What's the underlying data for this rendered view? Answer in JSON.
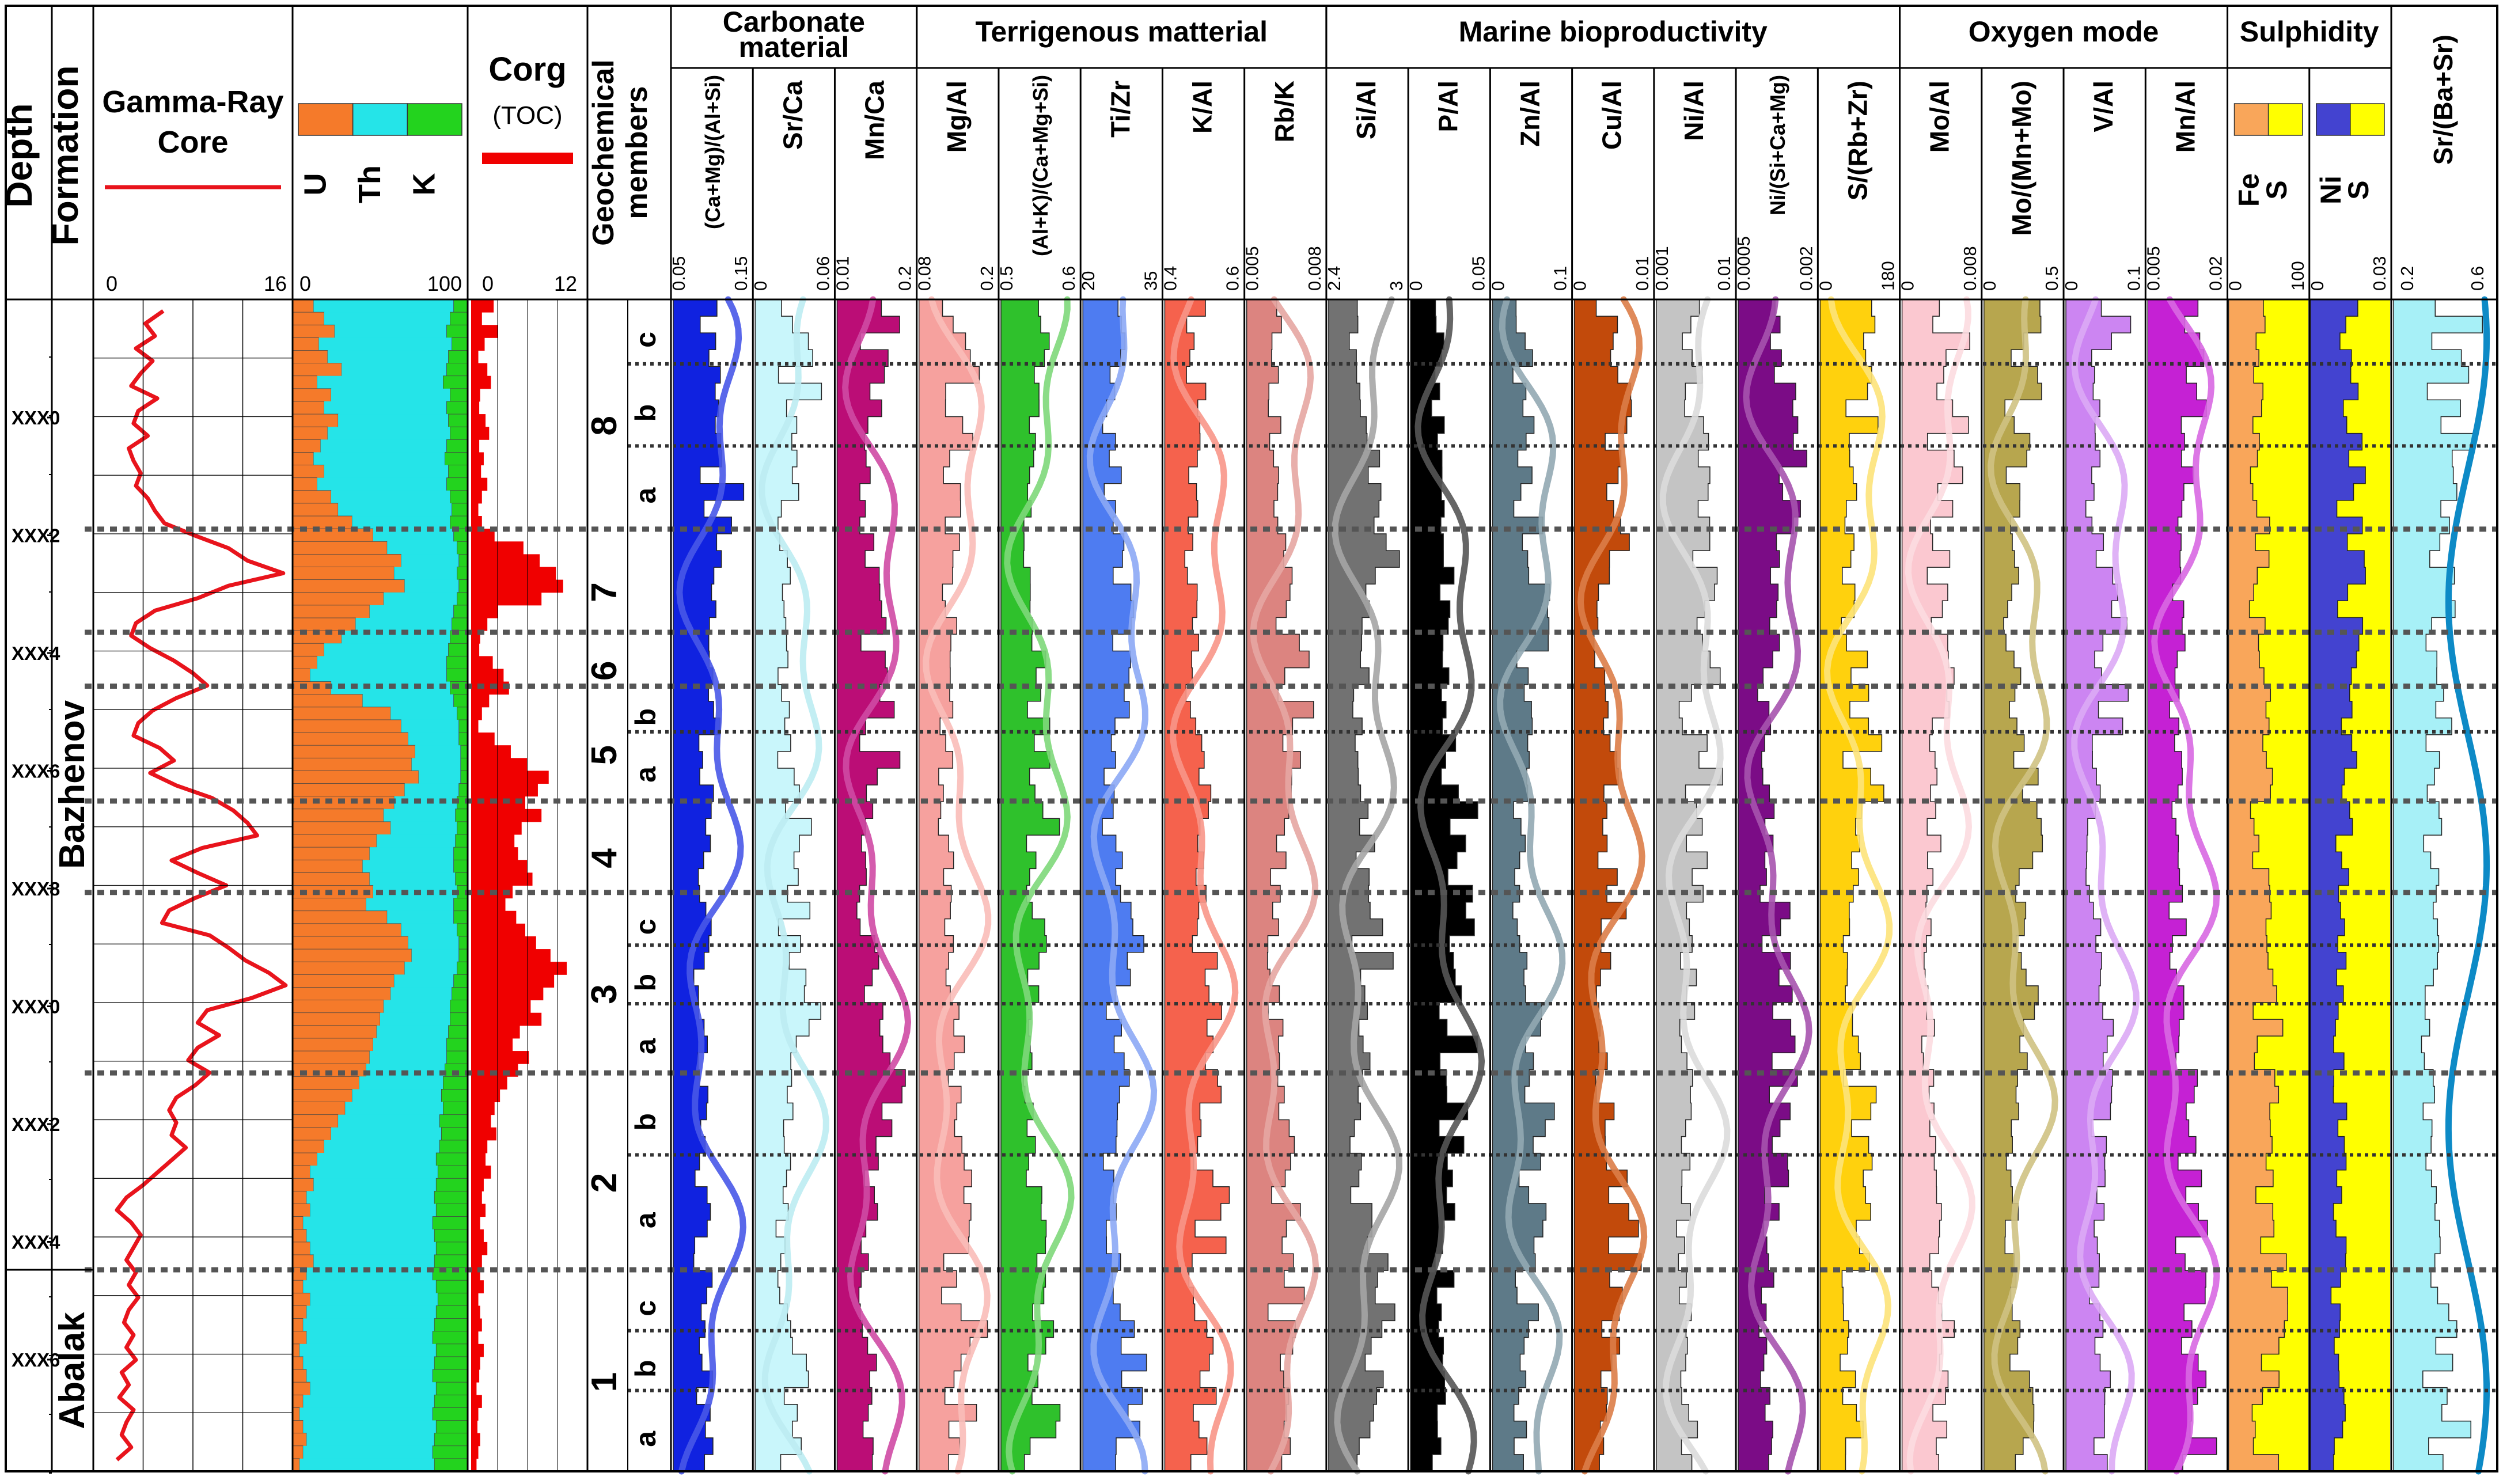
{
  "chart_data": {
    "type": "well-log",
    "depth_header": "Depth",
    "formation_header": "Formation",
    "depth_labels": [
      "XXX0",
      "XXX2",
      "XXX4",
      "XXX6",
      "XXX8",
      "XXX0",
      "XXX2",
      "XXX4",
      "XXX6"
    ],
    "formations": [
      {
        "name": "Bazhenov",
        "top": 0.0,
        "base": 0.828
      },
      {
        "name": "Abalak",
        "top": 0.828,
        "base": 1.0
      }
    ],
    "gamma": {
      "title_lines": [
        "Gamma-Ray",
        "Core"
      ],
      "min_label": "0",
      "max_label": "16",
      "range": [
        0,
        16
      ],
      "color": "#e8141c",
      "values": [
        5.5,
        4.0,
        4.8,
        3.2,
        4.6,
        3.6,
        2.8,
        5.0,
        3.4,
        3.0,
        4.2,
        2.6,
        3.0,
        3.6,
        3.2,
        4.2,
        4.8,
        5.6,
        8.2,
        11.0,
        12.6,
        15.6,
        11.0,
        8.4,
        4.8,
        3.2,
        2.8,
        4.4,
        6.4,
        8.0,
        9.2,
        6.6,
        4.6,
        3.4,
        3.0,
        5.2,
        6.4,
        4.4,
        6.6,
        9.6,
        11.4,
        12.6,
        13.4,
        8.8,
        6.2,
        8.4,
        10.8,
        8.2,
        6.0,
        5.4,
        9.4,
        11.0,
        12.4,
        14.4,
        15.8,
        13.0,
        9.2,
        8.4,
        10.2,
        8.4,
        7.6,
        9.4,
        8.2,
        6.6,
        6.0,
        6.6,
        6.2,
        7.4,
        6.2,
        5.0,
        3.8,
        2.4,
        1.6,
        2.8,
        3.6,
        3.0,
        2.4,
        3.2,
        2.6,
        3.4,
        2.6,
        2.2,
        3.0,
        2.4,
        3.2,
        2.0,
        2.6,
        1.8,
        3.0,
        2.4,
        2.0,
        2.8,
        1.6
      ]
    },
    "spectral": {
      "labels": [
        "U",
        "Th",
        "K"
      ],
      "colors": [
        "#f57a2a",
        "#25e4e8",
        "#23d31e"
      ],
      "min_label": "0",
      "max_label": "100",
      "u_values": [
        12,
        18,
        24,
        15,
        20,
        28,
        14,
        22,
        18,
        26,
        20,
        16,
        12,
        18,
        14,
        22,
        26,
        34,
        46,
        54,
        62,
        58,
        64,
        52,
        44,
        36,
        28,
        18,
        14,
        10,
        22,
        40,
        56,
        62,
        66,
        70,
        68,
        72,
        64,
        58,
        52,
        56,
        48,
        44,
        40,
        44,
        46,
        42,
        54,
        62,
        66,
        68,
        64,
        58,
        56,
        52,
        50,
        48,
        46,
        44,
        42,
        38,
        34,
        30,
        26,
        22,
        18,
        14,
        10,
        12,
        8,
        10,
        6,
        8,
        10,
        12,
        8,
        6,
        10,
        8,
        6,
        8,
        4,
        6,
        8,
        10,
        6,
        4,
        6,
        8,
        6,
        4
      ],
      "k_values": [
        8,
        10,
        12,
        9,
        11,
        12,
        14,
        10,
        12,
        11,
        10,
        12,
        13,
        11,
        12,
        10,
        9,
        10,
        8,
        6,
        5,
        6,
        5,
        6,
        8,
        9,
        10,
        11,
        12,
        12,
        10,
        8,
        6,
        5,
        5,
        4,
        4,
        4,
        5,
        6,
        7,
        6,
        7,
        8,
        8,
        7,
        6,
        8,
        8,
        6,
        5,
        5,
        6,
        8,
        9,
        10,
        10,
        11,
        12,
        12,
        13,
        14,
        15,
        14,
        16,
        15,
        16,
        18,
        17,
        18,
        19,
        18,
        20,
        19,
        18,
        19,
        20,
        18,
        17,
        18,
        19,
        20,
        18,
        19,
        20,
        18,
        19,
        20,
        18,
        19,
        20,
        19
      ]
    },
    "corg": {
      "title": "Corg",
      "subtitle": "(TOC)",
      "color": "#f00000",
      "min_label": "0",
      "max_label": "12",
      "values": [
        2.5,
        1.2,
        3.0,
        1.5,
        0.8,
        1.8,
        2.2,
        1.0,
        0.9,
        1.6,
        2.0,
        0.9,
        1.4,
        1.1,
        1.8,
        1.2,
        0.8,
        1.2,
        2.6,
        5.8,
        7.6,
        9.4,
        10.2,
        7.8,
        3.0,
        1.8,
        1.0,
        0.9,
        2.4,
        3.6,
        4.2,
        2.0,
        1.2,
        0.8,
        2.6,
        4.4,
        6.2,
        8.6,
        7.4,
        6.0,
        7.8,
        5.6,
        4.8,
        5.2,
        6.2,
        6.8,
        4.6,
        3.8,
        5.0,
        6.0,
        7.2,
        8.8,
        10.6,
        9.2,
        8.0,
        6.6,
        7.8,
        5.4,
        4.6,
        6.4,
        5.2,
        4.0,
        3.2,
        2.6,
        2.2,
        2.8,
        1.8,
        1.6,
        2.2,
        1.4,
        1.2,
        1.6,
        1.0,
        1.4,
        1.8,
        1.2,
        1.0,
        1.4,
        0.8,
        1.0,
        1.2,
        0.8,
        1.4,
        1.0,
        0.9,
        0.6,
        1.2,
        0.8,
        0.7,
        1.0,
        0.8,
        0.6
      ]
    },
    "members_title_lines": [
      "Geochemical",
      "members"
    ],
    "members": [
      {
        "label": "8",
        "top": 0.0,
        "base": 0.196
      },
      {
        "label": "7",
        "top": 0.196,
        "base": 0.284
      },
      {
        "label": "6",
        "top": 0.284,
        "base": 0.33
      },
      {
        "label": "5",
        "top": 0.33,
        "base": 0.428
      },
      {
        "label": "4",
        "top": 0.428,
        "base": 0.506
      },
      {
        "label": "3",
        "top": 0.506,
        "base": 0.66
      },
      {
        "label": "2",
        "top": 0.66,
        "base": 0.828
      },
      {
        "label": "1",
        "top": 0.828,
        "base": 1.0
      }
    ],
    "submembers": [
      {
        "label": "c",
        "top": 0.0,
        "base": 0.055
      },
      {
        "label": "b",
        "top": 0.055,
        "base": 0.125
      },
      {
        "label": "a",
        "top": 0.125,
        "base": 0.196
      },
      {
        "label": "b",
        "top": 0.33,
        "base": 0.369
      },
      {
        "label": "a",
        "top": 0.369,
        "base": 0.428
      },
      {
        "label": "c",
        "top": 0.506,
        "base": 0.551
      },
      {
        "label": "b",
        "top": 0.551,
        "base": 0.601
      },
      {
        "label": "a",
        "top": 0.601,
        "base": 0.66
      },
      {
        "label": "b",
        "top": 0.66,
        "base": 0.73
      },
      {
        "label": "a",
        "top": 0.73,
        "base": 0.828
      },
      {
        "label": "c",
        "top": 0.828,
        "base": 0.88
      },
      {
        "label": "b",
        "top": 0.88,
        "base": 0.931
      },
      {
        "label": "a",
        "top": 0.931,
        "base": 1.0
      }
    ],
    "major_boundaries": [
      0.196,
      0.284,
      0.33,
      0.428,
      0.506,
      0.66,
      0.828
    ],
    "minor_boundaries": [
      0.055,
      0.125,
      0.369,
      0.551,
      0.601,
      0.73,
      0.88,
      0.931
    ],
    "groups": [
      {
        "title_lines": [
          "Carbonate",
          "material"
        ]
      },
      {
        "title_lines": [
          "Terrigenous matterial"
        ]
      },
      {
        "title_lines": [
          "Marine bioproductivity"
        ]
      },
      {
        "title_lines": [
          "Oxygen mode"
        ]
      },
      {
        "title_lines": [
          "Sulphidity"
        ]
      }
    ],
    "ratio_tracks": [
      {
        "label": "(Ca+Mg)/(Al+Si)",
        "min": "0.05",
        "max": "0.15",
        "color": "#1022e0",
        "curve": "#4858e8"
      },
      {
        "label": "Sr/Ca",
        "min": "0",
        "max": "0.06",
        "color": "#c9f6fb",
        "curve": "#bdecf2"
      },
      {
        "label": "Mn/Ca",
        "min": "0.01",
        "max": "0.2",
        "color": "#bb0d76",
        "curve": "#cf4aa4"
      },
      {
        "label": "Mg/Al",
        "min": "0.08",
        "max": "0.2",
        "color": "#f6a19e",
        "curve": "#f9bcb8"
      },
      {
        "label": "(Al+K)/(Ca+Mg+Si)",
        "min": "0.5",
        "max": "0.6",
        "color": "#2fc12c",
        "curve": "#7ed87a"
      },
      {
        "label": "Ti/Zr",
        "min": "20",
        "max": "35",
        "color": "#4e7cf1",
        "curve": "#8ca8f5"
      },
      {
        "label": "K/Al",
        "min": "0.4",
        "max": "0.6",
        "color": "#f5624d",
        "curve": "#f89688"
      },
      {
        "label": "Rb/K",
        "min": "0.005",
        "max": "0.008",
        "color": "#dc8480",
        "curve": "#e6a6a2"
      },
      {
        "label": "Si/Al",
        "min": "2.4",
        "max": "3",
        "color": "#727272",
        "curve": "#a5a5a5"
      },
      {
        "label": "P/Al",
        "min": "0",
        "max": "0.05",
        "color": "#000000",
        "curve": "#555555"
      },
      {
        "label": "Zn/Al",
        "min": "0",
        "max": "0.1",
        "color": "#5e7a88",
        "curve": "#92a8b3"
      },
      {
        "label": "Cu/Al",
        "min": "0",
        "max": "0.01",
        "color": "#c24a0b",
        "curve": "#db7d48"
      },
      {
        "label": "Ni/Al",
        "min": "0.001",
        "max": "0.01",
        "color": "#c4c4c4",
        "curve": "#dcdcdc"
      },
      {
        "label": "Ni/(Si+Ca+Mg)",
        "min": "0.0005",
        "max": "0.002",
        "color": "#7b0c86",
        "curve": "#a653ae"
      },
      {
        "label": "S/(Rb+Zr)",
        "min": "0",
        "max": "180",
        "color": "#ffd10d",
        "curve": "#fde37a"
      },
      {
        "label": "Mo/Al",
        "min": "0",
        "max": "0.008",
        "color": "#fbc8d0",
        "curve": "#fcdbe0"
      },
      {
        "label": "Mo/(Mn+Mo)",
        "min": "0",
        "max": "0.5",
        "color": "#b7a64e",
        "curve": "#cfc283"
      },
      {
        "label": "V/Al",
        "min": "0",
        "max": "0.1",
        "color": "#cc85f2",
        "curve": "#dcaaf5"
      },
      {
        "label": "Mn/Al",
        "min": "0.005",
        "max": "0.02",
        "color": "#c521d4",
        "curve": "#d868e2"
      }
    ],
    "fe_track": {
      "labels": [
        "Fe",
        "S"
      ],
      "min": "0",
      "max": "100",
      "colors": [
        "#f9a65a",
        "#ffff00"
      ]
    },
    "ni_track": {
      "labels": [
        "Ni",
        "S"
      ],
      "min": "0",
      "max": "0.03",
      "colors": [
        "#4343d0",
        "#ffff00"
      ]
    },
    "sr_track": {
      "label": "Sr/(Ba+Sr)",
      "min": "0.2",
      "max": "0.6",
      "color": "#a7f0f7",
      "curve": "#0d8ac6"
    }
  }
}
